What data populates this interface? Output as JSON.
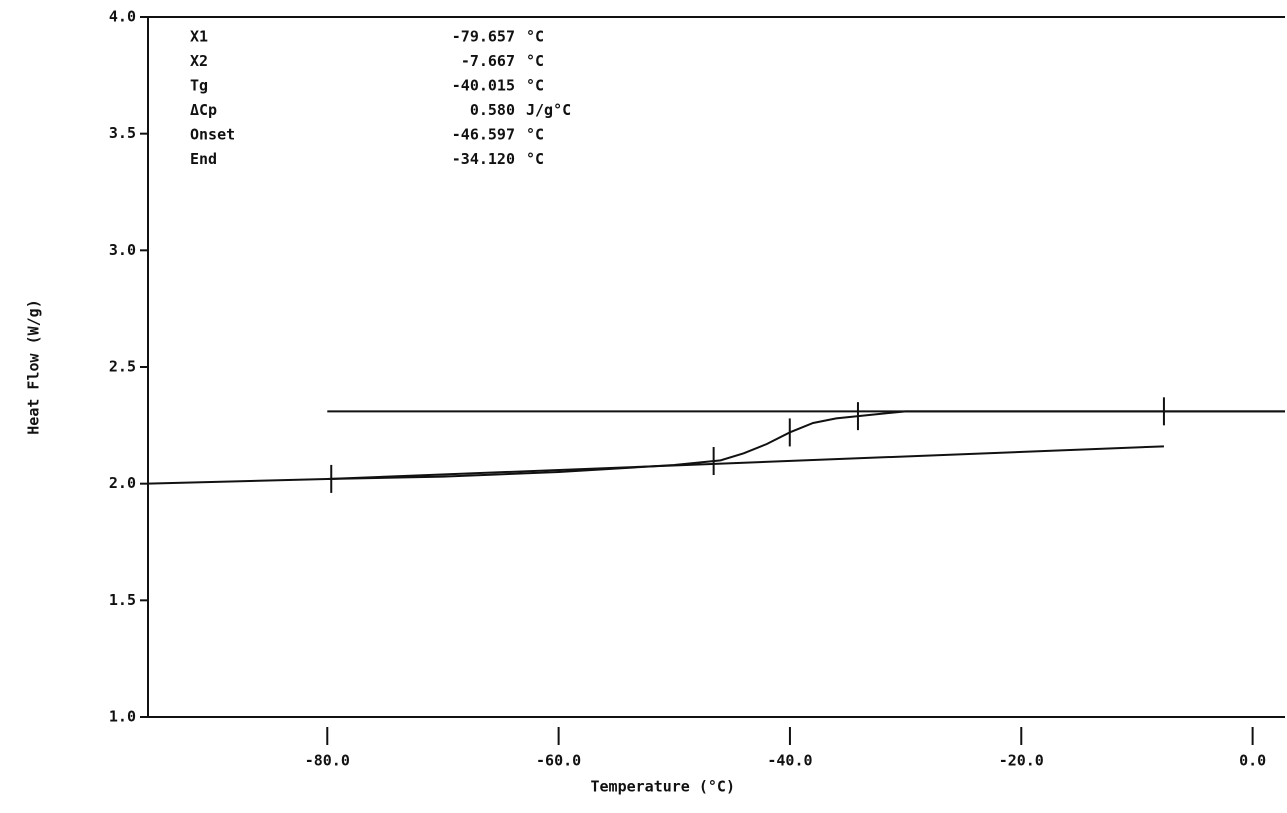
{
  "chart_data": {
    "type": "line",
    "xlabel": "Temperature (°C)",
    "ylabel": "Heat Flow (W/g)",
    "xlim": [
      -95.5,
      2.8
    ],
    "ylim": [
      1.0,
      4.0
    ],
    "xticks": [
      {
        "value": -80,
        "label": "-80.0"
      },
      {
        "value": -60,
        "label": "-60.0"
      },
      {
        "value": -40,
        "label": "-40.0"
      },
      {
        "value": -20,
        "label": "-20.0"
      },
      {
        "value": 0,
        "label": "0.0"
      }
    ],
    "yticks": [
      {
        "value": 1,
        "label": "1.0"
      },
      {
        "value": 1.5,
        "label": "1.5"
      },
      {
        "value": 2,
        "label": "2.0"
      },
      {
        "value": 2.5,
        "label": "2.5"
      },
      {
        "value": 3,
        "label": "3.0"
      },
      {
        "value": 3.5,
        "label": "3.5"
      },
      {
        "value": 4,
        "label": "4.0"
      }
    ],
    "series": [
      {
        "color": "#111111",
        "x": [
          -95.5,
          -80,
          -70,
          -60,
          -50,
          -46,
          -44,
          -42,
          -40,
          -38,
          -36,
          -34,
          -30,
          -20,
          -10,
          2.8
        ],
        "values": [
          2.0,
          2.02,
          2.03,
          2.05,
          2.08,
          2.1,
          2.13,
          2.17,
          2.22,
          2.26,
          2.28,
          2.29,
          2.31,
          2.31,
          2.31,
          2.31
        ]
      },
      {
        "color": "#111111",
        "x": [
          -80,
          2.8
        ],
        "values": [
          2.31,
          2.31
        ]
      },
      {
        "color": "#111111",
        "x": [
          -80,
          -7.667
        ],
        "values": [
          2.02,
          2.16
        ]
      }
    ],
    "annotations": [
      {
        "label": "X1",
        "value": -79.657,
        "value_label": "-79.657",
        "unit": "°C"
      },
      {
        "label": "X2",
        "value": -7.667,
        "value_label": "-7.667",
        "unit": "°C"
      },
      {
        "label": "Tg",
        "value": -40.015,
        "value_label": "-40.015",
        "unit": "°C"
      },
      {
        "label": "ΔCp",
        "value": 0.58,
        "value_label": "0.580",
        "unit": "J/g°C"
      },
      {
        "label": "Onset",
        "value": -46.597,
        "value_label": "-46.597",
        "unit": "°C"
      },
      {
        "label": "End",
        "value": -34.12,
        "value_label": "-34.120",
        "unit": "°C"
      }
    ]
  }
}
